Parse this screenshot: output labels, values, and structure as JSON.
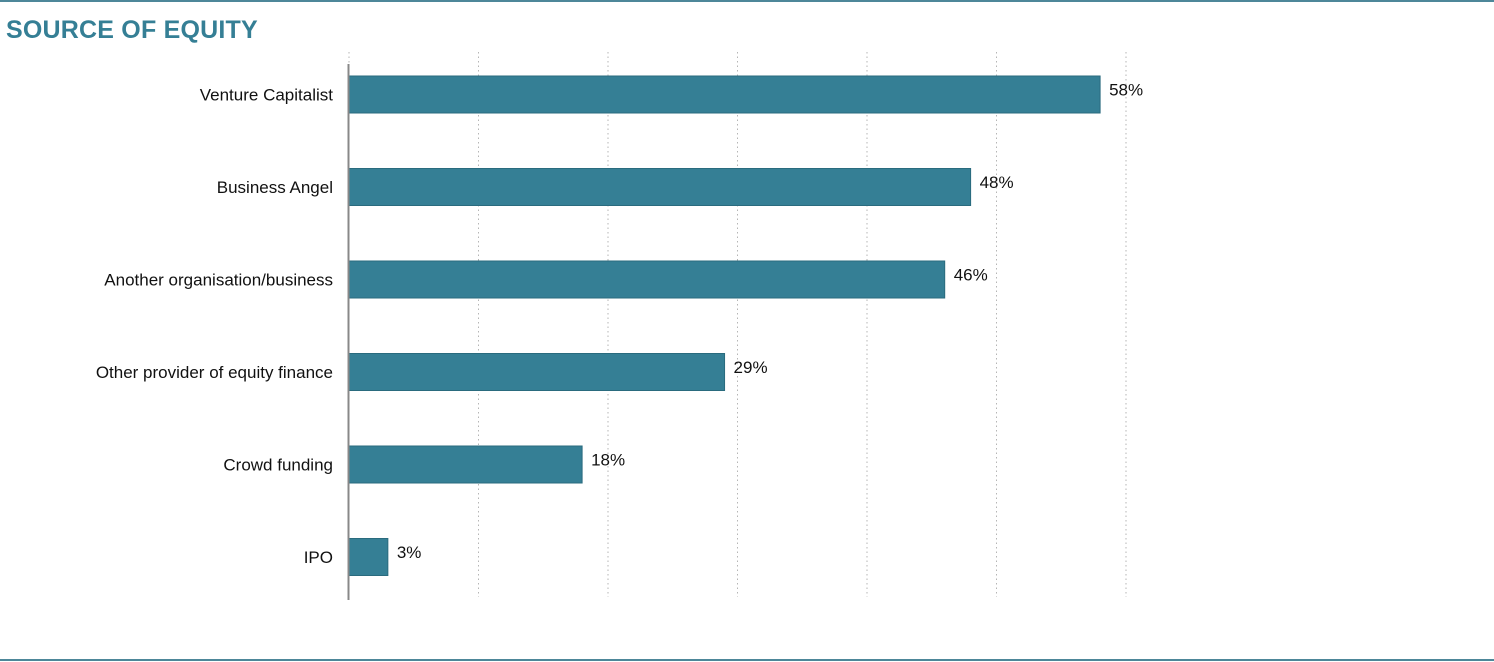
{
  "chart_data": {
    "type": "bar",
    "orientation": "horizontal",
    "title": "SOURCE OF EQUITY",
    "categories": [
      "Venture Capitalist",
      "Business Angel",
      "Another organisation/business",
      "Other provider of equity finance",
      "Crowd funding",
      "IPO"
    ],
    "values": [
      58,
      48,
      46,
      29,
      18,
      3
    ],
    "data_labels": [
      "58%",
      "48%",
      "46%",
      "29%",
      "18%",
      "3%"
    ],
    "xlim": [
      0,
      60
    ],
    "grid": true,
    "bar_color": "#357f95",
    "title_color": "#357f95",
    "rule_color": "#4d8799"
  }
}
